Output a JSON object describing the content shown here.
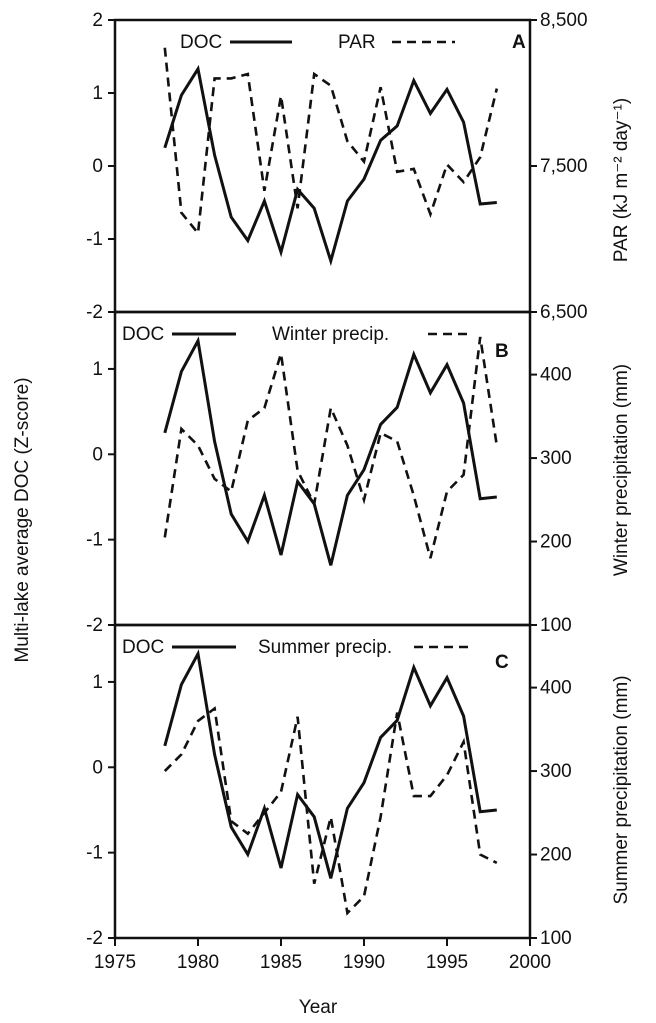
{
  "chart_data": [
    {
      "type": "line",
      "panel": "A",
      "x": [
        1978,
        1979,
        1980,
        1981,
        1982,
        1983,
        1984,
        1985,
        1986,
        1987,
        1988,
        1989,
        1990,
        1991,
        1992,
        1993,
        1994,
        1995,
        1996,
        1997,
        1998
      ],
      "series": [
        {
          "name": "DOC",
          "axis": "left",
          "style": "solid",
          "values": [
            0.25,
            0.97,
            1.33,
            0.15,
            -0.7,
            -1.02,
            -0.48,
            -1.18,
            -0.32,
            -0.58,
            -1.3,
            -0.48,
            -0.18,
            0.35,
            0.55,
            1.17,
            0.72,
            1.05,
            0.6,
            -0.52,
            -0.5
          ]
        },
        {
          "name": "PAR",
          "axis": "right",
          "style": "dashed",
          "values": [
            8310,
            7180,
            7040,
            8100,
            8100,
            8130,
            7330,
            7980,
            7210,
            8130,
            8050,
            7670,
            7530,
            8040,
            7460,
            7480,
            7170,
            7510,
            7390,
            7560,
            8030
          ]
        }
      ],
      "ylim": [
        -2,
        2
      ],
      "yticks": [
        "2",
        "1",
        "0",
        "-1",
        "-2"
      ],
      "y2lim": [
        6500,
        8500
      ],
      "y2ticks": [
        "8,500",
        "7,500",
        "6,500"
      ],
      "y2label": "PAR  (kJ m⁻² day⁻¹)"
    },
    {
      "type": "line",
      "panel": "B",
      "x": [
        1978,
        1979,
        1980,
        1981,
        1982,
        1983,
        1984,
        1985,
        1986,
        1987,
        1988,
        1989,
        1990,
        1991,
        1992,
        1993,
        1994,
        1995,
        1996,
        1997,
        1998
      ],
      "series": [
        {
          "name": "DOC",
          "axis": "left",
          "style": "solid",
          "values": [
            0.25,
            0.97,
            1.33,
            0.15,
            -0.7,
            -1.02,
            -0.48,
            -1.18,
            -0.32,
            -0.58,
            -1.3,
            -0.48,
            -0.18,
            0.35,
            0.55,
            1.17,
            0.72,
            1.05,
            0.6,
            -0.52,
            -0.5
          ]
        },
        {
          "name": "Winter precip.",
          "axis": "right",
          "style": "dashed",
          "values": [
            205,
            335,
            315,
            275,
            260,
            345,
            360,
            425,
            285,
            245,
            360,
            315,
            250,
            330,
            320,
            255,
            180,
            260,
            280,
            445,
            315
          ]
        }
      ],
      "ylim": [
        -2,
        1.667
      ],
      "yticks": [
        "1",
        "0",
        "-1",
        "-2"
      ],
      "y2lim": [
        100,
        475
      ],
      "y2ticks": [
        "400",
        "300",
        "200",
        "100"
      ],
      "y2label": "Winter precipitation (mm)"
    },
    {
      "type": "line",
      "panel": "C",
      "x": [
        1978,
        1979,
        1980,
        1981,
        1982,
        1983,
        1984,
        1985,
        1986,
        1987,
        1988,
        1989,
        1990,
        1991,
        1992,
        1993,
        1994,
        1995,
        1996,
        1997,
        1998
      ],
      "series": [
        {
          "name": "DOC",
          "axis": "left",
          "style": "solid",
          "values": [
            0.25,
            0.97,
            1.33,
            0.15,
            -0.7,
            -1.02,
            -0.48,
            -1.18,
            -0.32,
            -0.58,
            -1.3,
            -0.48,
            -0.18,
            0.35,
            0.55,
            1.17,
            0.72,
            1.05,
            0.6,
            -0.52,
            -0.5
          ]
        },
        {
          "name": "Summer precip.",
          "axis": "right",
          "style": "dashed",
          "values": [
            300,
            320,
            360,
            375,
            240,
            225,
            250,
            275,
            365,
            165,
            245,
            130,
            150,
            245,
            370,
            270,
            270,
            295,
            335,
            200,
            190
          ]
        }
      ],
      "ylim": [
        -2,
        1.667
      ],
      "yticks": [
        "1",
        "0",
        "-1",
        "-2"
      ],
      "y2lim": [
        100,
        475
      ],
      "y2ticks": [
        "400",
        "300",
        "200",
        "100"
      ],
      "y2label": "Summer precipitation (mm)",
      "xticks": [
        "1975",
        "1980",
        "1985",
        "1990",
        "1995",
        "2000"
      ],
      "xlim": [
        1975,
        2000
      ]
    }
  ],
  "ylabel": "Multi-lake average DOC (Z-score)",
  "xlabel": "Year"
}
